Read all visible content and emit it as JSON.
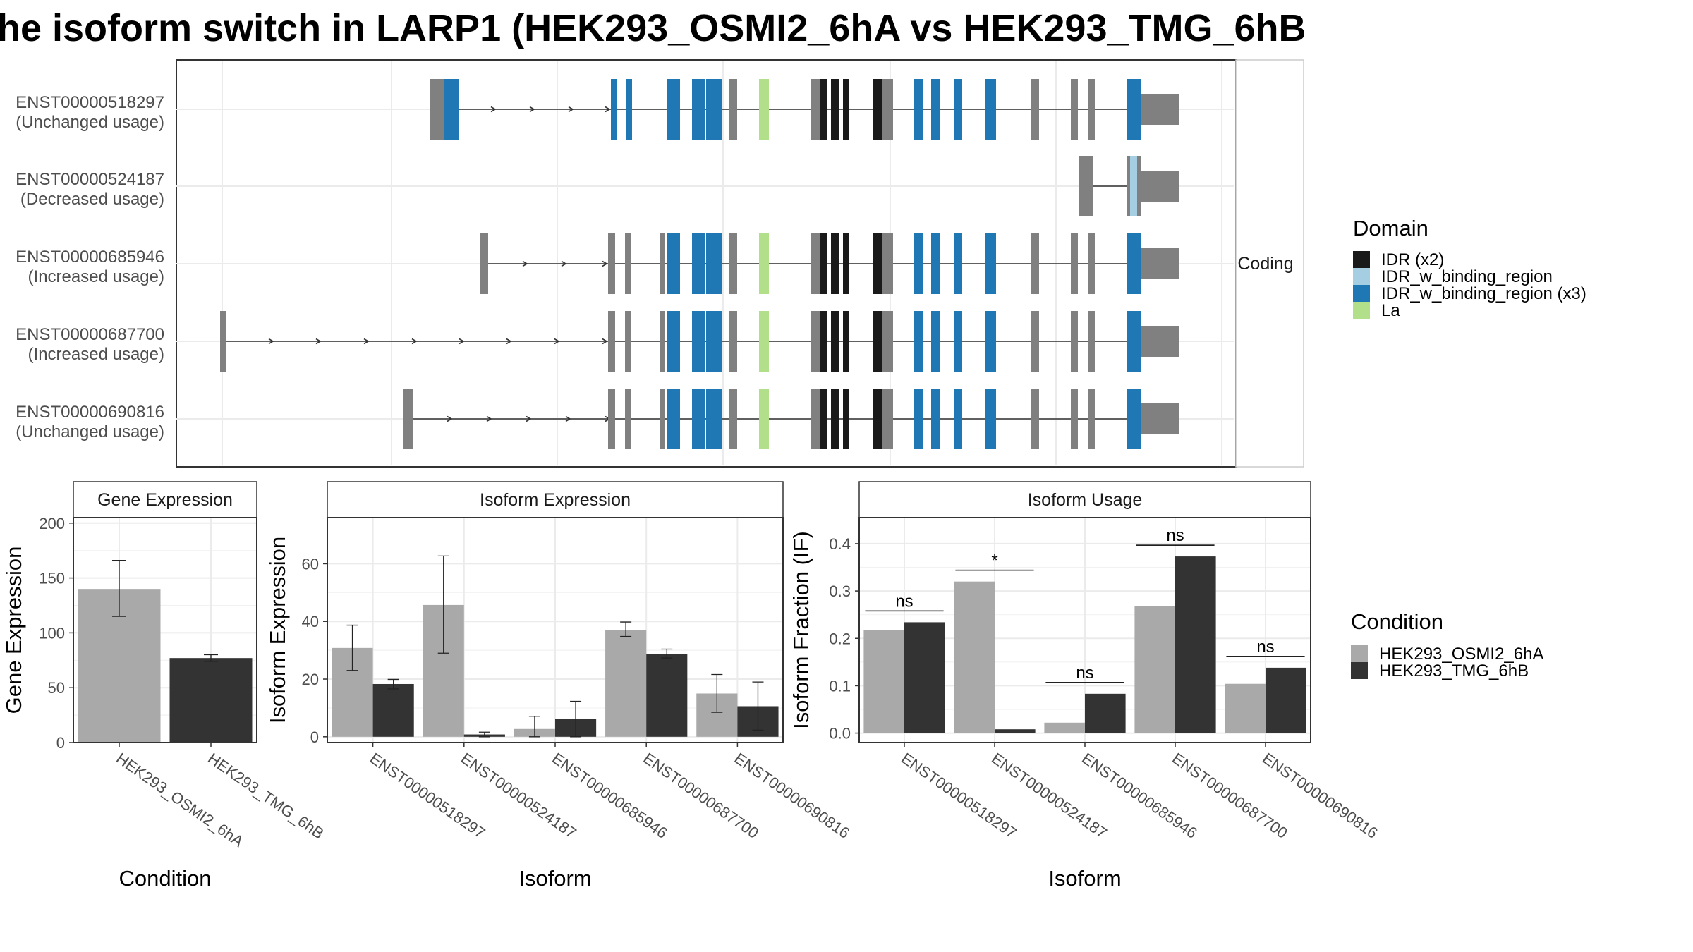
{
  "title": "he isoform switch in LARP1 (HEK293_OSMI2_6hA vs HEK293_TMG_6hB",
  "colors": {
    "cond_a": "#a9a9a9",
    "cond_b": "#333333",
    "noncoding_exon": "#808080",
    "IDR (x2)": "#1a1a1a",
    "IDR_w_binding_region": "#a6cee3",
    "IDR_w_binding_region (x3)": "#1f78b4",
    "La": "#b2df8a"
  },
  "structure": {
    "strip_label": "Coding",
    "transcripts": [
      {
        "id": "ENST00000518297",
        "usage": "(Unchanged usage)"
      },
      {
        "id": "ENST00000524187",
        "usage": "(Decreased usage)"
      },
      {
        "id": "ENST00000685946",
        "usage": "(Increased usage)"
      },
      {
        "id": "ENST00000687700",
        "usage": "(Increased usage)"
      },
      {
        "id": "ENST00000690816",
        "usage": "(Unchanged usage)"
      }
    ]
  },
  "legend_domain": {
    "title": "Domain",
    "items": [
      "IDR (x2)",
      "IDR_w_binding_region",
      "IDR_w_binding_region (x3)",
      "La"
    ]
  },
  "legend_condition": {
    "title": "Condition",
    "items": [
      "HEK293_OSMI2_6hA",
      "HEK293_TMG_6hB"
    ]
  },
  "chart_data": [
    {
      "type": "bar",
      "title": "Gene Expression",
      "xlabel": "Condition",
      "ylabel": "Gene Expression",
      "ylim": [
        0,
        205
      ],
      "yticks": [
        0,
        50,
        100,
        150,
        200
      ],
      "categories": [
        "HEK293_OSMI2_6hA",
        "HEK293_TMG_6hB"
      ],
      "values": [
        140,
        77
      ],
      "err_low": [
        115,
        74
      ],
      "err_high": [
        166,
        80
      ]
    },
    {
      "type": "bar",
      "title": "Isoform Expression",
      "xlabel": "Isoform",
      "ylabel": "Isoform Expression",
      "ylim": [
        -2,
        76
      ],
      "yticks": [
        0,
        20,
        40,
        60
      ],
      "categories": [
        "ENST00000518297",
        "ENST00000524187",
        "ENST00000685946",
        "ENST00000687700",
        "ENST00000690816"
      ],
      "series": [
        {
          "name": "HEK293_OSMI2_6hA",
          "values": [
            30.8,
            45.7,
            2.7,
            37.1,
            15.0
          ],
          "err_low": [
            23.0,
            29.0,
            0.0,
            34.8,
            8.5
          ],
          "err_high": [
            38.7,
            62.7,
            7.1,
            39.8,
            21.6
          ]
        },
        {
          "name": "HEK293_TMG_6hB",
          "values": [
            18.3,
            0.8,
            6.1,
            28.8,
            10.6
          ],
          "err_low": [
            16.6,
            0.0,
            0.0,
            27.3,
            2.3
          ],
          "err_high": [
            19.9,
            1.6,
            12.3,
            30.4,
            19.0
          ]
        }
      ]
    },
    {
      "type": "bar",
      "title": "Isoform Usage",
      "xlabel": "Isoform",
      "ylabel": "Isoform Fraction (IF)",
      "ylim": [
        -0.02,
        0.455
      ],
      "yticks": [
        "0.0",
        "0.1",
        "0.2",
        "0.3",
        "0.4"
      ],
      "categories": [
        "ENST00000518297",
        "ENST00000524187",
        "ENST00000685946",
        "ENST00000687700",
        "ENST00000690816"
      ],
      "series": [
        {
          "name": "HEK293_OSMI2_6hA",
          "values": [
            0.218,
            0.32,
            0.022,
            0.268,
            0.104
          ]
        },
        {
          "name": "HEK293_TMG_6hB",
          "values": [
            0.234,
            0.008,
            0.083,
            0.373,
            0.138
          ]
        }
      ],
      "significance": [
        "ns",
        "*",
        "ns",
        "ns",
        "ns"
      ]
    }
  ]
}
